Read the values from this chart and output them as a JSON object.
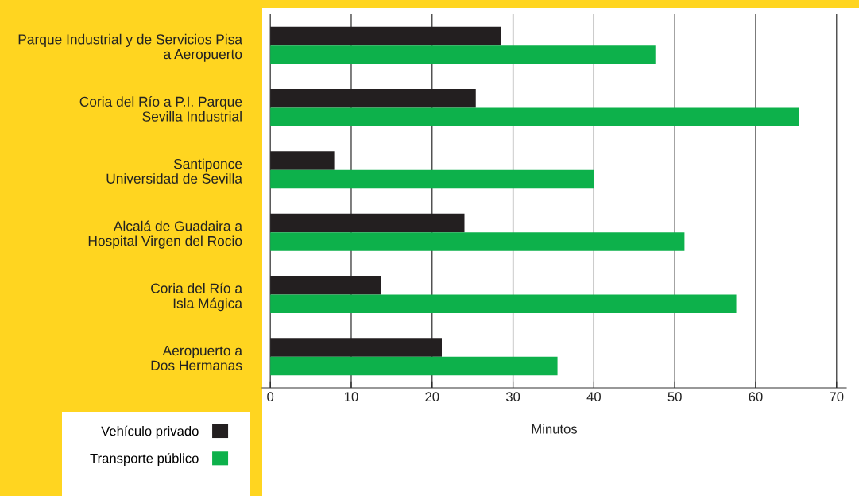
{
  "chart_data": {
    "type": "bar",
    "orientation": "horizontal",
    "xlabel": "Minutos",
    "categories": [
      "Parque Industrial y de Servicios Pisa\na Aeropuerto",
      "Coria del Río a P.I. Parque\nSevilla Industrial",
      "Santiponce\nUniversidad de Sevilla",
      "Alcalá de Guadaira a\nHospital Virgen del Rocio",
      "Coria del Río a\nIsla Mágica",
      "Aeropuerto a\nDos Hermanas"
    ],
    "series": [
      {
        "name": "Vehículo privado",
        "color": "#231f20",
        "values": [
          28.5,
          25.4,
          7.9,
          24.0,
          13.7,
          21.2
        ]
      },
      {
        "name": "Transporte público",
        "color": "#0db14b",
        "values": [
          47.6,
          65.4,
          40.0,
          51.2,
          57.6,
          35.5
        ]
      }
    ],
    "xlim": [
      -1,
      71.2
    ],
    "xticks": [
      0,
      10,
      20,
      30,
      40,
      50,
      60,
      70
    ],
    "grid": "x",
    "legend": "bottom left"
  }
}
